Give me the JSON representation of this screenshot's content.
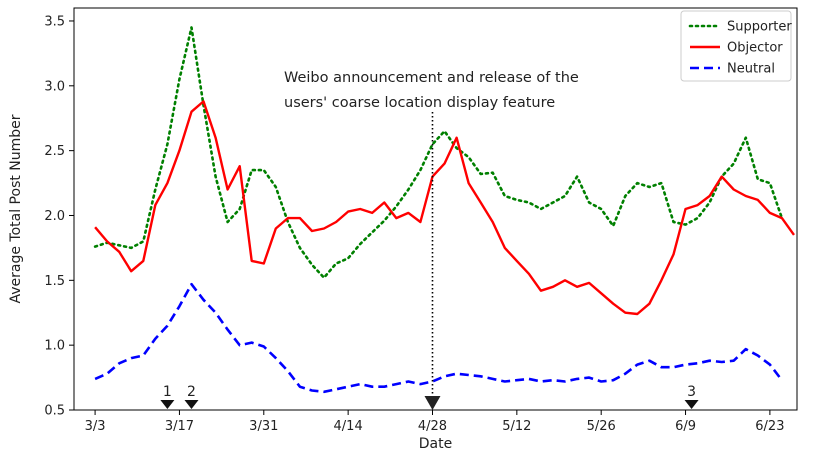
{
  "chart_data": {
    "type": "line",
    "xlabel": "Date",
    "ylabel": "Average Total Post Number",
    "ylim": [
      0.5,
      3.6
    ],
    "xlim": [
      -3.5,
      116.5
    ],
    "x_ticks": [
      {
        "label": "3/3",
        "index": 0
      },
      {
        "label": "3/17",
        "index": 14
      },
      {
        "label": "3/31",
        "index": 28
      },
      {
        "label": "4/14",
        "index": 42
      },
      {
        "label": "4/28",
        "index": 56
      },
      {
        "label": "5/12",
        "index": 70
      },
      {
        "label": "5/26",
        "index": 84
      },
      {
        "label": "6/9",
        "index": 98
      },
      {
        "label": "6/23",
        "index": 112
      }
    ],
    "y_ticks": [
      0.5,
      1.0,
      1.5,
      2.0,
      2.5,
      3.0,
      3.5
    ],
    "grid": false,
    "legend_position": "top-right",
    "series": [
      {
        "name": "Supporter",
        "color": "#008000",
        "style": "dotted",
        "x": [
          0,
          2,
          4,
          6,
          8,
          10,
          12,
          14,
          16,
          18,
          20,
          22,
          24,
          26,
          28,
          30,
          32,
          34,
          36,
          38,
          40,
          42,
          44,
          46,
          48,
          50,
          52,
          54,
          56,
          58,
          60,
          62,
          64,
          66,
          68,
          70,
          72,
          74,
          76,
          78,
          80,
          82,
          84,
          86,
          88,
          90,
          92,
          94,
          96,
          98,
          100,
          102,
          104,
          106,
          108,
          110,
          112,
          114
        ],
        "y": [
          1.76,
          1.79,
          1.77,
          1.75,
          1.8,
          2.2,
          2.55,
          3.05,
          3.45,
          2.85,
          2.3,
          1.95,
          2.05,
          2.35,
          2.35,
          2.22,
          1.95,
          1.75,
          1.62,
          1.52,
          1.63,
          1.67,
          1.78,
          1.87,
          1.96,
          2.07,
          2.2,
          2.35,
          2.55,
          2.65,
          2.52,
          2.45,
          2.32,
          2.33,
          2.15,
          2.12,
          2.1,
          2.05,
          2.1,
          2.15,
          2.3,
          2.1,
          2.05,
          1.92,
          2.15,
          2.25,
          2.22,
          2.25,
          1.95,
          1.93,
          1.98,
          2.1,
          2.3,
          2.4,
          2.6,
          2.28,
          2.25,
          1.98
        ]
      },
      {
        "name": "Objector",
        "color": "#ff0000",
        "style": "solid",
        "x": [
          0,
          2,
          4,
          6,
          8,
          10,
          12,
          14,
          16,
          18,
          20,
          22,
          24,
          26,
          28,
          30,
          32,
          34,
          36,
          38,
          40,
          42,
          44,
          46,
          48,
          50,
          52,
          54,
          56,
          58,
          60,
          62,
          64,
          66,
          68,
          70,
          72,
          74,
          76,
          78,
          80,
          82,
          84,
          86,
          88,
          90,
          92,
          94,
          96,
          98,
          100,
          102,
          104,
          106,
          108,
          110,
          112,
          114,
          116
        ],
        "y": [
          1.91,
          1.8,
          1.72,
          1.57,
          1.65,
          2.08,
          2.25,
          2.5,
          2.8,
          2.88,
          2.6,
          2.2,
          2.38,
          1.65,
          1.63,
          1.9,
          1.98,
          1.98,
          1.88,
          1.9,
          1.95,
          2.03,
          2.05,
          2.02,
          2.1,
          1.98,
          2.02,
          1.95,
          2.3,
          2.4,
          2.6,
          2.25,
          2.1,
          1.95,
          1.75,
          1.65,
          1.55,
          1.42,
          1.45,
          1.5,
          1.45,
          1.48,
          1.4,
          1.32,
          1.25,
          1.24,
          1.32,
          1.5,
          1.7,
          2.05,
          2.08,
          2.15,
          2.3,
          2.2,
          2.15,
          2.12,
          2.02,
          1.98,
          1.85
        ]
      },
      {
        "name": "Neutral",
        "color": "#0000ff",
        "style": "dashed",
        "x": [
          0,
          2,
          4,
          6,
          8,
          10,
          12,
          14,
          16,
          18,
          20,
          22,
          24,
          26,
          28,
          30,
          32,
          34,
          36,
          38,
          40,
          42,
          44,
          46,
          48,
          50,
          52,
          54,
          56,
          58,
          60,
          62,
          64,
          66,
          68,
          70,
          72,
          74,
          76,
          78,
          80,
          82,
          84,
          86,
          88,
          90,
          92,
          94,
          96,
          98,
          100,
          102,
          104,
          106,
          108,
          110,
          112,
          114
        ],
        "y": [
          0.74,
          0.78,
          0.86,
          0.9,
          0.92,
          1.05,
          1.15,
          1.3,
          1.47,
          1.35,
          1.25,
          1.12,
          1.0,
          1.02,
          0.99,
          0.9,
          0.8,
          0.68,
          0.65,
          0.64,
          0.66,
          0.68,
          0.7,
          0.68,
          0.68,
          0.7,
          0.72,
          0.7,
          0.72,
          0.76,
          0.78,
          0.77,
          0.76,
          0.74,
          0.72,
          0.73,
          0.74,
          0.72,
          0.73,
          0.72,
          0.74,
          0.75,
          0.72,
          0.73,
          0.78,
          0.85,
          0.88,
          0.83,
          0.83,
          0.85,
          0.86,
          0.88,
          0.87,
          0.88,
          0.97,
          0.92,
          0.85,
          0.73
        ]
      }
    ],
    "annotation": {
      "lines": [
        "Weibo announcement and release of the",
        "users' coarse location display feature"
      ],
      "x_index": 56
    },
    "event_markers": [
      {
        "label": "1",
        "x_index": 12
      },
      {
        "label": "2",
        "x_index": 16
      },
      {
        "label": "3",
        "x_index": 99
      }
    ]
  }
}
